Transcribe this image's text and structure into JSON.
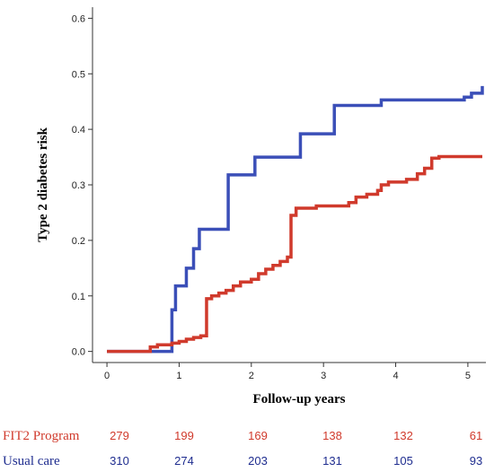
{
  "chart_data": {
    "type": "line",
    "title": "",
    "xlabel": "Follow-up years",
    "ylabel": "Type 2 diabetes risk",
    "xlim": [
      -0.2,
      5.25
    ],
    "ylim": [
      -0.02,
      0.62
    ],
    "x_ticks": [
      0,
      1,
      2,
      3,
      4,
      5
    ],
    "x_tick_labels": [
      "0",
      "1",
      "2",
      "3",
      "4",
      "5"
    ],
    "y_ticks": [
      0.0,
      0.1,
      0.2,
      0.3,
      0.4,
      0.5,
      0.6
    ],
    "y_tick_labels": [
      "0.0",
      "0.1",
      "0.2",
      "0.3",
      "0.4",
      "0.5",
      "0.6"
    ],
    "grid": false,
    "series": [
      {
        "name": "Usual care",
        "color": "#3b4fb8",
        "step": true,
        "points": [
          [
            0,
            0.0
          ],
          [
            0.9,
            0.0
          ],
          [
            0.9,
            0.075
          ],
          [
            0.95,
            0.118
          ],
          [
            1.1,
            0.15
          ],
          [
            1.2,
            0.185
          ],
          [
            1.28,
            0.22
          ],
          [
            1.68,
            0.318
          ],
          [
            2.05,
            0.35
          ],
          [
            2.68,
            0.392
          ],
          [
            3.15,
            0.443
          ],
          [
            3.8,
            0.453
          ],
          [
            4.95,
            0.458
          ],
          [
            5.05,
            0.465
          ],
          [
            5.2,
            0.478
          ]
        ]
      },
      {
        "name": "FIT2 Program",
        "color": "#d03a2c",
        "step": true,
        "points": [
          [
            0,
            0.0
          ],
          [
            0.6,
            0.008
          ],
          [
            0.7,
            0.012
          ],
          [
            0.9,
            0.015
          ],
          [
            1.0,
            0.018
          ],
          [
            1.1,
            0.022
          ],
          [
            1.2,
            0.025
          ],
          [
            1.3,
            0.028
          ],
          [
            1.38,
            0.095
          ],
          [
            1.45,
            0.1
          ],
          [
            1.55,
            0.105
          ],
          [
            1.65,
            0.11
          ],
          [
            1.75,
            0.118
          ],
          [
            1.85,
            0.125
          ],
          [
            2.0,
            0.13
          ],
          [
            2.1,
            0.14
          ],
          [
            2.2,
            0.148
          ],
          [
            2.3,
            0.155
          ],
          [
            2.4,
            0.162
          ],
          [
            2.5,
            0.17
          ],
          [
            2.55,
            0.245
          ],
          [
            2.62,
            0.258
          ],
          [
            2.9,
            0.262
          ],
          [
            3.35,
            0.268
          ],
          [
            3.45,
            0.278
          ],
          [
            3.6,
            0.283
          ],
          [
            3.75,
            0.29
          ],
          [
            3.8,
            0.3
          ],
          [
            3.9,
            0.305
          ],
          [
            4.15,
            0.31
          ],
          [
            4.3,
            0.32
          ],
          [
            4.4,
            0.33
          ],
          [
            4.5,
            0.348
          ],
          [
            4.6,
            0.351
          ],
          [
            5.2,
            0.351
          ]
        ]
      }
    ],
    "risk_table": {
      "rows": [
        {
          "label": "FIT2 Program",
          "color": "#d03a2c",
          "values": [
            "279",
            "199",
            "169",
            "138",
            "132",
            "61"
          ]
        },
        {
          "label": "Usual care",
          "color": "#1f2d8f",
          "values": [
            "310",
            "274",
            "203",
            "131",
            "105",
            "93"
          ]
        }
      ]
    }
  }
}
